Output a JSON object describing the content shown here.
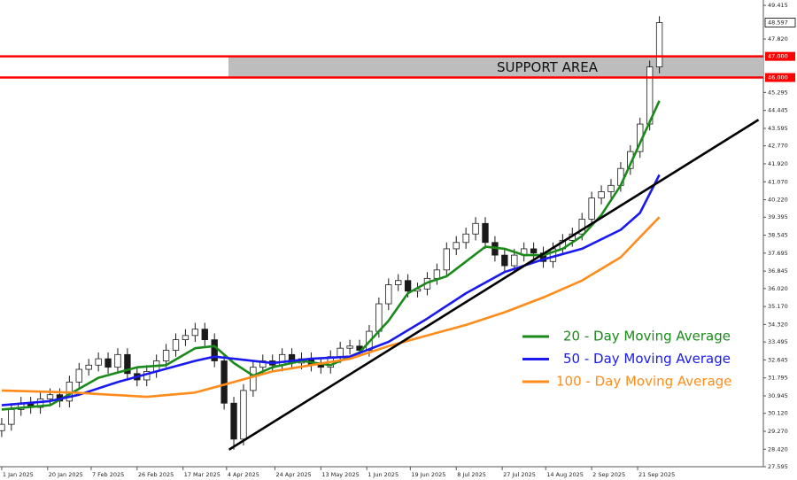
{
  "chart_data": {
    "type": "candlestick",
    "x": [
      0,
      4,
      8,
      12,
      16,
      20,
      24,
      28,
      32,
      36,
      40,
      44,
      48,
      52,
      56,
      60,
      64,
      68,
      72,
      76,
      80,
      84,
      88,
      92,
      96,
      100,
      104,
      108,
      112,
      116,
      120,
      124,
      128,
      132,
      136,
      140,
      144,
      148,
      152,
      156,
      160,
      164,
      168,
      172,
      176,
      180,
      184,
      188,
      192,
      196,
      200,
      204,
      208,
      212,
      216,
      220,
      224,
      228,
      232,
      236,
      240,
      244,
      248,
      252,
      256,
      260,
      264,
      268,
      272
    ],
    "open": [
      29.3,
      29.6,
      30.3,
      30.6,
      30.4,
      30.8,
      31.0,
      30.7,
      31.6,
      32.2,
      32.4,
      32.7,
      32.3,
      32.9,
      32.0,
      31.7,
      32.1,
      32.6,
      33.1,
      33.6,
      33.8,
      34.1,
      33.6,
      32.6,
      30.6,
      28.9,
      31.2,
      32.3,
      32.6,
      32.4,
      32.9,
      32.5,
      32.7,
      32.4,
      32.3,
      32.8,
      33.2,
      33.3,
      33.1,
      34.0,
      35.3,
      36.2,
      36.4,
      35.9,
      36.0,
      36.5,
      36.9,
      37.9,
      38.2,
      38.6,
      39.1,
      38.2,
      37.6,
      37.1,
      37.6,
      37.9,
      37.7,
      37.3,
      37.9,
      38.3,
      38.6,
      39.3,
      40.3,
      40.6,
      40.9,
      41.7,
      42.5,
      43.8,
      46.5
    ],
    "high": [
      29.9,
      30.6,
      30.9,
      30.9,
      31.1,
      31.3,
      31.3,
      31.9,
      32.5,
      32.7,
      33.0,
      33.0,
      33.2,
      33.2,
      32.3,
      32.4,
      32.9,
      33.4,
      33.9,
      34.1,
      34.4,
      34.4,
      33.9,
      32.9,
      30.9,
      31.5,
      32.6,
      32.9,
      32.9,
      33.2,
      33.2,
      33.0,
      33.0,
      32.7,
      33.1,
      33.5,
      33.6,
      33.6,
      34.3,
      35.6,
      36.5,
      36.7,
      36.7,
      36.3,
      36.8,
      37.2,
      38.2,
      38.5,
      38.9,
      39.4,
      39.4,
      38.5,
      37.9,
      37.9,
      38.2,
      38.2,
      38.0,
      38.2,
      38.6,
      38.9,
      39.6,
      40.6,
      40.9,
      41.2,
      42.0,
      42.8,
      44.1,
      46.8,
      48.9
    ],
    "low": [
      29.0,
      29.3,
      30.0,
      30.1,
      30.1,
      30.5,
      30.4,
      30.4,
      31.3,
      31.9,
      32.1,
      32.0,
      32.0,
      31.7,
      31.4,
      31.4,
      31.8,
      32.3,
      32.8,
      33.3,
      33.5,
      33.3,
      32.3,
      30.3,
      28.4,
      28.6,
      30.9,
      32.0,
      32.1,
      32.1,
      32.2,
      32.2,
      32.1,
      32.0,
      32.0,
      32.5,
      32.9,
      32.8,
      32.8,
      33.7,
      35.0,
      35.9,
      35.6,
      35.6,
      35.7,
      36.2,
      36.6,
      37.6,
      37.9,
      38.3,
      37.9,
      37.3,
      36.8,
      36.8,
      37.3,
      37.4,
      37.0,
      37.0,
      37.6,
      38.0,
      38.3,
      39.0,
      40.0,
      40.3,
      40.6,
      41.4,
      42.2,
      43.5,
      46.2
    ],
    "close": [
      29.6,
      30.3,
      30.6,
      30.4,
      30.8,
      31.0,
      30.7,
      31.6,
      32.2,
      32.4,
      32.7,
      32.3,
      32.9,
      32.0,
      31.7,
      32.1,
      32.6,
      33.1,
      33.6,
      33.8,
      34.1,
      33.6,
      32.6,
      30.6,
      28.9,
      31.2,
      32.3,
      32.6,
      32.4,
      32.9,
      32.5,
      32.7,
      32.4,
      32.3,
      32.8,
      33.2,
      33.3,
      33.1,
      34.0,
      35.3,
      36.2,
      36.4,
      35.9,
      36.0,
      36.5,
      36.9,
      37.9,
      38.2,
      38.6,
      39.1,
      38.2,
      37.6,
      37.1,
      37.6,
      37.9,
      37.7,
      37.3,
      37.9,
      38.3,
      38.6,
      39.3,
      40.3,
      40.6,
      40.9,
      41.7,
      42.5,
      43.8,
      46.5,
      48.597
    ],
    "up_color": "#ffffff",
    "down_color": "#1a1a1a",
    "series": [
      {
        "name": "20 - Day Moving Average",
        "color": "#1a8a1a",
        "x": [
          0,
          20,
          40,
          56,
          68,
          80,
          88,
          96,
          104,
          112,
          124,
          136,
          148,
          160,
          168,
          176,
          184,
          192,
          200,
          208,
          216,
          224,
          232,
          240,
          248,
          256,
          264,
          272
        ],
        "values": [
          30.3,
          30.5,
          31.8,
          32.3,
          32.4,
          33.2,
          33.3,
          32.5,
          31.9,
          32.3,
          32.6,
          32.4,
          33.0,
          34.5,
          35.8,
          36.3,
          36.6,
          37.3,
          38.0,
          37.9,
          37.6,
          37.6,
          37.9,
          38.5,
          39.5,
          40.9,
          42.9,
          44.9
        ]
      },
      {
        "name": "50 - Day Moving Average",
        "color": "#1a1aee",
        "x": [
          0,
          20,
          32,
          48,
          64,
          80,
          88,
          96,
          112,
          128,
          144,
          160,
          176,
          192,
          208,
          224,
          240,
          256,
          264,
          272
        ],
        "values": [
          30.5,
          30.7,
          31.0,
          31.6,
          32.1,
          32.6,
          32.8,
          32.7,
          32.5,
          32.7,
          32.8,
          33.5,
          34.6,
          35.8,
          36.8,
          37.4,
          37.9,
          38.8,
          39.6,
          41.4
        ]
      },
      {
        "name": "100 - Day Moving Average",
        "color": "#ff8c1a",
        "x": [
          0,
          30,
          60,
          80,
          96,
          112,
          128,
          144,
          160,
          176,
          192,
          208,
          224,
          240,
          256,
          272
        ],
        "values": [
          31.2,
          31.1,
          30.9,
          31.1,
          31.6,
          32.1,
          32.4,
          32.7,
          33.3,
          33.8,
          34.3,
          34.9,
          35.6,
          36.4,
          37.5,
          39.4
        ]
      }
    ],
    "trendline": {
      "color": "#000000",
      "x": [
        94,
        313
      ],
      "values": [
        28.4,
        44.0
      ]
    },
    "support": {
      "label": "SUPPORT AREA",
      "line_color": "#ff0000",
      "fill": "#bdbdbd",
      "lines": [
        {
          "value": 47,
          "label": "47.000"
        },
        {
          "value": 46,
          "label": "46.000"
        }
      ]
    },
    "current_price": 48.597,
    "legend": "right",
    "xlim": [
      -0.7,
      315
    ],
    "xticks": [
      {
        "value": 0,
        "label": "1 Jan 2025"
      },
      {
        "value": 19,
        "label": "20 Jan 2025"
      },
      {
        "value": 37,
        "label": "7 Feb 2025"
      },
      {
        "value": 56,
        "label": "26 Feb 2025"
      },
      {
        "value": 75,
        "label": "17 Mar 2025"
      },
      {
        "value": 93,
        "label": "4 Apr 2025"
      },
      {
        "value": 113,
        "label": "24 Apr 2025"
      },
      {
        "value": 132,
        "label": "13 May 2025"
      },
      {
        "value": 151,
        "label": "1 Jun 2025"
      },
      {
        "value": 169,
        "label": "19 Jun 2025"
      },
      {
        "value": 188,
        "label": "8 Jul 2025"
      },
      {
        "value": 207,
        "label": "27 Jul 2025"
      },
      {
        "value": 225,
        "label": "14 Aug 2025"
      },
      {
        "value": 244,
        "label": "2 Sep 2025"
      },
      {
        "value": 263,
        "label": "21 Sep 2025"
      }
    ],
    "ylim": [
      27.595,
      49.666
    ],
    "yticks": [
      27.595,
      {
        "value": 28.42,
        "label": "28.420"
      },
      {
        "value": 29.27,
        "label": "29.270"
      },
      {
        "value": 30.12,
        "label": "30.120"
      },
      30.945,
      31.795,
      32.645,
      33.495,
      {
        "value": 34.32,
        "label": "34.320"
      },
      {
        "value": 35.17,
        "label": "35.170"
      },
      {
        "value": 36.02,
        "label": "36.020"
      },
      36.845,
      37.695,
      38.545,
      39.395,
      {
        "value": 40.22,
        "label": "40.220"
      },
      {
        "value": 41.07,
        "label": "41.070"
      },
      {
        "value": 41.92,
        "label": "41.920"
      },
      {
        "value": 42.77,
        "label": "42.770"
      },
      43.595,
      44.445,
      45.295,
      {
        "value": 47.82,
        "label": "47.820"
      },
      49.415
    ]
  }
}
